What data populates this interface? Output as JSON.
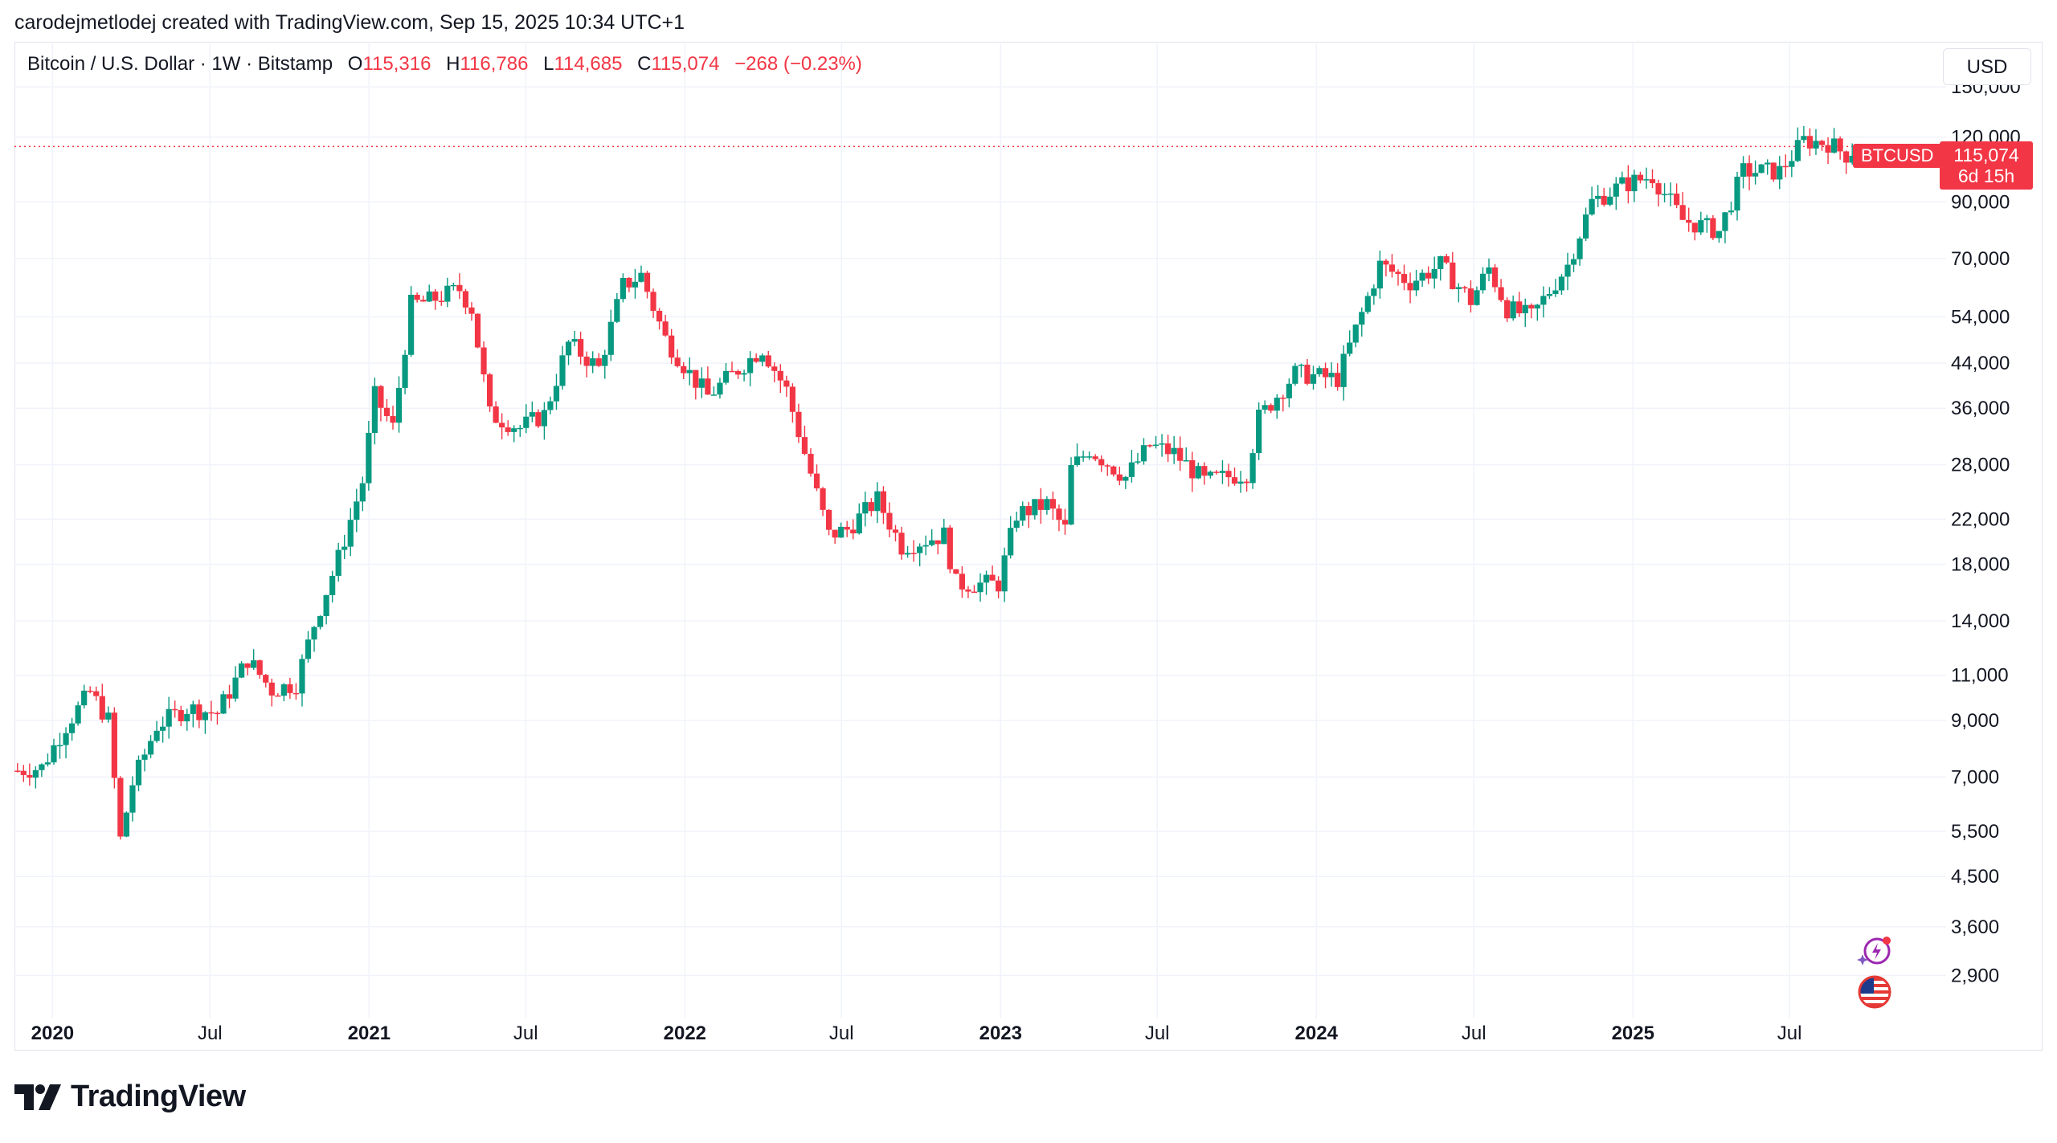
{
  "header": {
    "credit": "carodejmetlodej created with TradingView.com, Sep 15, 2025 10:34 UTC+1"
  },
  "legend": {
    "symbol": "Bitcoin / U.S. Dollar · 1W · Bitstamp",
    "o_label": "O",
    "o_value": "115,316",
    "h_label": "H",
    "h_value": "116,786",
    "l_label": "L",
    "l_value": "114,685",
    "c_label": "C",
    "c_value": "115,074",
    "change": "−268 (−0.23%)"
  },
  "toolbar": {
    "currency": "USD"
  },
  "price_tag": {
    "symbol": "BTCUSD",
    "price": "115,074",
    "countdown": "6d 15h"
  },
  "brand": {
    "name": "TradingView"
  },
  "icons": {
    "assistant": "sparkle-bolt-icon",
    "flag": "us-flag-icon",
    "logo": "tradingview-logo-icon"
  },
  "colors": {
    "up": "#089981",
    "down": "#f23645",
    "grid": "#f0f3fa",
    "text": "#131722"
  },
  "chart_data": {
    "type": "candlestick",
    "scale": "log",
    "interval": "1W",
    "ylim": [
      2600,
      160000
    ],
    "y_ticks": [
      150000,
      120000,
      90000,
      70000,
      54000,
      44000,
      36000,
      28000,
      22000,
      18000,
      14000,
      11000,
      9000,
      7000,
      5500,
      4500,
      3600,
      2900
    ],
    "y_tick_labels": [
      "150,000",
      "120,000",
      "90,000",
      "70,000",
      "54,000",
      "44,000",
      "36,000",
      "28,000",
      "22,000",
      "18,000",
      "14,000",
      "11,000",
      "9,000",
      "7,000",
      "5,500",
      "4,500",
      "3,600",
      "2,900"
    ],
    "x_range": [
      "2019-11-18",
      "2025-12-29"
    ],
    "x_ticks": [
      {
        "date": "2020-01-01",
        "label": "2020",
        "year": true
      },
      {
        "date": "2020-07-01",
        "label": "Jul",
        "year": false
      },
      {
        "date": "2021-01-01",
        "label": "2021",
        "year": true
      },
      {
        "date": "2021-07-01",
        "label": "Jul",
        "year": false
      },
      {
        "date": "2022-01-01",
        "label": "2022",
        "year": true
      },
      {
        "date": "2022-07-01",
        "label": "Jul",
        "year": false
      },
      {
        "date": "2023-01-01",
        "label": "2023",
        "year": true
      },
      {
        "date": "2023-07-01",
        "label": "Jul",
        "year": false
      },
      {
        "date": "2024-01-01",
        "label": "2024",
        "year": true
      },
      {
        "date": "2024-07-01",
        "label": "Jul",
        "year": false
      },
      {
        "date": "2025-01-01",
        "label": "2025",
        "year": true
      },
      {
        "date": "2025-07-01",
        "label": "Jul",
        "year": false
      }
    ],
    "last_price": 115074,
    "close_path": [
      [
        "2019-11-18",
        7200
      ],
      [
        "2019-12-16",
        7300
      ],
      [
        "2020-01-13",
        8800
      ],
      [
        "2020-02-10",
        10200
      ],
      [
        "2020-03-02",
        9000
      ],
      [
        "2020-03-16",
        5300
      ],
      [
        "2020-03-30",
        6800
      ],
      [
        "2020-04-27",
        8800
      ],
      [
        "2020-06-01",
        9500
      ],
      [
        "2020-07-06",
        9300
      ],
      [
        "2020-08-10",
        11800
      ],
      [
        "2020-09-07",
        10300
      ],
      [
        "2020-10-05",
        10600
      ],
      [
        "2020-10-26",
        13800
      ],
      [
        "2020-11-23",
        18500
      ],
      [
        "2020-12-21",
        26000
      ],
      [
        "2021-01-04",
        38000
      ],
      [
        "2021-01-25",
        33000
      ],
      [
        "2021-02-15",
        57000
      ],
      [
        "2021-03-08",
        58000
      ],
      [
        "2021-04-12",
        61000
      ],
      [
        "2021-04-26",
        56000
      ],
      [
        "2021-05-17",
        35000
      ],
      [
        "2021-06-21",
        33000
      ],
      [
        "2021-07-19",
        35000
      ],
      [
        "2021-08-16",
        48000
      ],
      [
        "2021-09-20",
        43000
      ],
      [
        "2021-10-18",
        62000
      ],
      [
        "2021-11-08",
        65000
      ],
      [
        "2021-12-06",
        49000
      ],
      [
        "2022-01-03",
        42000
      ],
      [
        "2022-01-24",
        38000
      ],
      [
        "2022-03-28",
        47000
      ],
      [
        "2022-04-25",
        39000
      ],
      [
        "2022-05-16",
        29500
      ],
      [
        "2022-06-13",
        20500
      ],
      [
        "2022-07-04",
        21000
      ],
      [
        "2022-08-08",
        24000
      ],
      [
        "2022-09-05",
        19500
      ],
      [
        "2022-10-24",
        20500
      ],
      [
        "2022-11-07",
        16500
      ],
      [
        "2022-12-26",
        16500
      ],
      [
        "2023-01-16",
        22500
      ],
      [
        "2023-02-20",
        23500
      ],
      [
        "2023-03-13",
        21000
      ],
      [
        "2023-03-20",
        27500
      ],
      [
        "2023-04-10",
        30000
      ],
      [
        "2023-05-22",
        26500
      ],
      [
        "2023-06-19",
        30500
      ],
      [
        "2023-07-17",
        29500
      ],
      [
        "2023-08-21",
        26000
      ],
      [
        "2023-10-09",
        27000
      ],
      [
        "2023-10-23",
        34500
      ],
      [
        "2023-12-04",
        42000
      ],
      [
        "2024-01-22",
        41000
      ],
      [
        "2024-02-12",
        51000
      ],
      [
        "2024-03-11",
        68000
      ],
      [
        "2024-04-15",
        63000
      ],
      [
        "2024-05-20",
        68000
      ],
      [
        "2024-06-24",
        58000
      ],
      [
        "2024-07-15",
        67000
      ],
      [
        "2024-08-05",
        56000
      ],
      [
        "2024-09-02",
        54000
      ],
      [
        "2024-10-14",
        68000
      ],
      [
        "2024-11-11",
        90000
      ],
      [
        "2024-12-16",
        97000
      ],
      [
        "2025-01-20",
        101000
      ],
      [
        "2025-02-24",
        83000
      ],
      [
        "2025-04-07",
        79000
      ],
      [
        "2025-05-05",
        103000
      ],
      [
        "2025-06-16",
        103000
      ],
      [
        "2025-07-14",
        118000
      ],
      [
        "2025-08-11",
        117000
      ],
      [
        "2025-09-01",
        111000
      ],
      [
        "2025-09-15",
        115074
      ]
    ]
  }
}
